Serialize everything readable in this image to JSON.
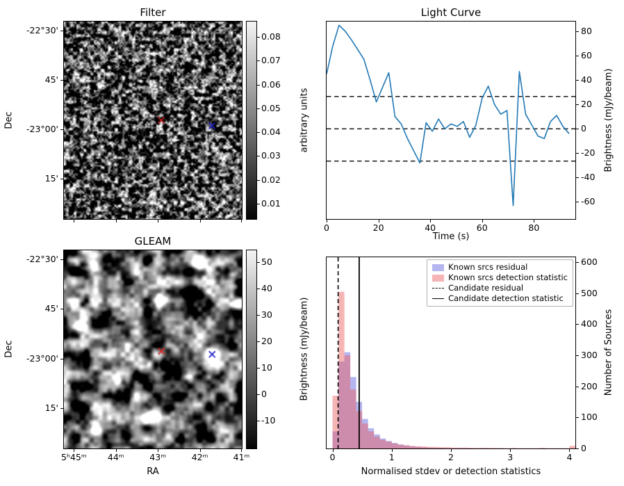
{
  "figure": {
    "background": "#ffffff"
  },
  "chart_data": [
    {
      "type": "heatmap",
      "title": "Filter",
      "ylabel": "Dec",
      "ytick_labels": [
        "-22°30'",
        "45'",
        "-23°00'",
        "15'"
      ],
      "image_description": "grayscale random-noise filter map",
      "colorbar": {
        "label": "arbitrary units",
        "ticks": [
          0.08,
          0.07,
          0.06,
          0.05,
          0.04,
          0.03,
          0.02,
          0.01
        ],
        "vmin": 0.0036,
        "vmax": 0.0864
      },
      "markers": [
        {
          "symbol": "x",
          "color": "#d62222",
          "fx": 0.547,
          "fy": 0.5
        },
        {
          "symbol": "x",
          "color": "#2121cc",
          "fx": 0.832,
          "fy": 0.528
        }
      ]
    },
    {
      "type": "line",
      "title": "Light Curve",
      "xlabel": "Time (s)",
      "ylabel": "Brightness (mJy/beam)",
      "line_color": "#1f77b4",
      "x": [
        0,
        2.4,
        4.8,
        7.2,
        9.6,
        12,
        14.4,
        16.8,
        19.2,
        21.6,
        24,
        26.4,
        28.8,
        31.2,
        33.6,
        36,
        38.4,
        40.8,
        43.2,
        45.6,
        48,
        50.4,
        52.8,
        55.2,
        57.6,
        60,
        62.4,
        64.8,
        67.2,
        69.6,
        72,
        74.4,
        76.8,
        79.2,
        81.6,
        84,
        86.4,
        88.8,
        91.2,
        93.6
      ],
      "y": [
        45,
        68,
        85,
        80,
        73,
        65,
        57,
        40,
        22,
        34,
        46,
        10,
        4,
        -8,
        -18,
        -28,
        5,
        -2,
        8,
        0,
        4,
        2,
        6,
        -7,
        3,
        25,
        35,
        20,
        12,
        15,
        -63,
        47,
        12,
        3,
        -6,
        -8,
        6,
        11,
        2,
        -4
      ],
      "hlines": [
        26.5,
        0,
        -26.5
      ],
      "xticks": [
        0,
        20,
        40,
        60,
        80
      ],
      "yticks": [
        80,
        60,
        40,
        20,
        0,
        -20,
        -40,
        -60
      ],
      "xlim": [
        0,
        96
      ],
      "ylim": [
        -74,
        88
      ],
      "grid": false
    },
    {
      "type": "heatmap",
      "title": "GLEAM",
      "xlabel": "RA",
      "ylabel": "Dec",
      "xtick_labels": [
        "5ʰ45ᵐ",
        "44ᵐ",
        "43ᵐ",
        "42ᵐ",
        "41ᵐ"
      ],
      "ytick_labels": [
        "-22°30'",
        "45'",
        "-23°00'",
        "15'"
      ],
      "image_description": "grayscale GLEAM survey cutout with bright point sources",
      "colorbar": {
        "label": "Brightness (mJy/beam)",
        "ticks": [
          50,
          40,
          30,
          20,
          10,
          0,
          -10
        ],
        "vmin": -20.5,
        "vmax": 54.5
      },
      "sources": [
        {
          "fx": 0.16,
          "fy": 0.055,
          "r": 8,
          "amp": 1.3
        },
        {
          "fx": 0.76,
          "fy": 0.07,
          "r": 7,
          "amp": 1.2
        },
        {
          "fx": 0.55,
          "fy": 0.24,
          "r": 6,
          "amp": 0.9
        },
        {
          "fx": 0.985,
          "fy": 0.27,
          "r": 6,
          "amp": 0.9
        },
        {
          "fx": 0.09,
          "fy": 0.385,
          "r": 5,
          "amp": 0.7
        },
        {
          "fx": 0.833,
          "fy": 0.525,
          "r": 7,
          "amp": 1.3
        },
        {
          "fx": 0.49,
          "fy": 0.845,
          "r": 8,
          "amp": 1.2
        },
        {
          "fx": 0.175,
          "fy": 0.905,
          "r": 6,
          "amp": 1.0
        },
        {
          "fx": 0.3,
          "fy": 0.66,
          "r": 4,
          "amp": 0.55
        },
        {
          "fx": 0.63,
          "fy": 0.5,
          "r": 4,
          "amp": 0.5
        },
        {
          "fx": 0.945,
          "fy": 0.12,
          "r": 4,
          "amp": 0.6
        }
      ],
      "markers": [
        {
          "symbol": "x",
          "color": "#d62222",
          "fx": 0.548,
          "fy": 0.509
        },
        {
          "symbol": "x",
          "color": "#2121cc",
          "fx": 0.833,
          "fy": 0.525
        }
      ]
    },
    {
      "type": "histogram",
      "title": "",
      "xlabel": "Normalised stdev or detection statistics",
      "ylabel": "Number of Sources",
      "bin_start": 0,
      "bin_width": 0.1,
      "series": [
        {
          "name": "Known srcs residual",
          "color": "rgba(90,90,220,0.45)",
          "counts": [
            55,
            280,
            310,
            230,
            150,
            95,
            65,
            45,
            32,
            24,
            18,
            13,
            10,
            7,
            5,
            4,
            3,
            2,
            2,
            1,
            1,
            1,
            1,
            1,
            0,
            1,
            0,
            0,
            1,
            0,
            0,
            0,
            0,
            0,
            0,
            0,
            0,
            0,
            0,
            0,
            0,
            0
          ]
        },
        {
          "name": "Known srcs detection statistic",
          "color": "rgba(235,90,90,0.45)",
          "counts": [
            170,
            505,
            300,
            190,
            120,
            80,
            55,
            38,
            28,
            22,
            16,
            12,
            10,
            8,
            7,
            6,
            5,
            5,
            4,
            4,
            3,
            3,
            3,
            2,
            2,
            2,
            2,
            2,
            1,
            1,
            2,
            1,
            1,
            1,
            1,
            2,
            1,
            1,
            1,
            1,
            8,
            0
          ]
        }
      ],
      "vlines": {
        "dashed": {
          "label": "Candidate residual",
          "x": 0.095
        },
        "solid": {
          "label": "Candidate detection statistic",
          "x": 0.45
        }
      },
      "xticks": [
        0,
        1,
        2,
        3,
        4
      ],
      "yticks": [
        0,
        100,
        200,
        300,
        400,
        500,
        600
      ],
      "xlim": [
        -0.1,
        4.1
      ],
      "ylim": [
        0,
        616
      ],
      "legend_position": "upper right"
    }
  ]
}
